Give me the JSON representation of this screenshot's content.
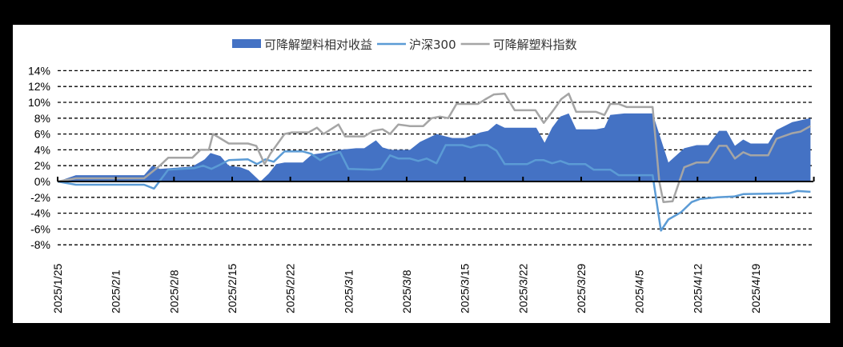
{
  "chart_data": {
    "type": "area+line",
    "title": "",
    "xlabel": "",
    "ylabel": "",
    "ylim": [
      -8,
      14
    ],
    "yticks": [
      "14%",
      "12%",
      "10%",
      "8%",
      "6%",
      "4%",
      "2%",
      "0%",
      "-2%",
      "-4%",
      "-6%",
      "-8%"
    ],
    "ytick_values": [
      14,
      12,
      10,
      8,
      6,
      4,
      2,
      0,
      -2,
      -4,
      -6,
      -8
    ],
    "xlim_dates": [
      "2025/1/25",
      "2025/4/26"
    ],
    "xtick_labels": [
      "2025/1/25",
      "2025/2/1",
      "2025/2/8",
      "2025/2/15",
      "2025/2/22",
      "2025/3/1",
      "2025/3/8",
      "2025/3/15",
      "2025/3/22",
      "2025/3/29",
      "2025/4/5",
      "2025/4/12",
      "2025/4/19"
    ],
    "grid": "horizontal dashed",
    "legend_position": "top",
    "legend": [
      {
        "label": "可降解塑料相对收益",
        "type": "area",
        "color": "#4472C4"
      },
      {
        "label": "沪深300",
        "type": "line",
        "color": "#5B9BD5"
      },
      {
        "label": "可降解塑料指数",
        "type": "line",
        "color": "#A5A5A5"
      }
    ],
    "series": [
      {
        "name": "可降解塑料相对收益",
        "type": "area",
        "color": "#4472C4",
        "points": [
          [
            0,
            0
          ],
          [
            2.2,
            0.8
          ],
          [
            10.4,
            0.8
          ],
          [
            11.4,
            2.0
          ],
          [
            12.3,
            1.6
          ],
          [
            16.2,
            1.9
          ],
          [
            17.7,
            2.8
          ],
          [
            18.4,
            3.6
          ],
          [
            19.6,
            3.2
          ],
          [
            20.6,
            2.0
          ],
          [
            22,
            1.8
          ],
          [
            23,
            1.4
          ],
          [
            24.4,
            0
          ],
          [
            25.4,
            1.0
          ],
          [
            26.3,
            2.2
          ],
          [
            27.3,
            2.4
          ],
          [
            29.5,
            2.4
          ],
          [
            30.6,
            3.4
          ],
          [
            32.6,
            3.7
          ],
          [
            34,
            4.0
          ],
          [
            35.9,
            4.2
          ],
          [
            36.9,
            4.2
          ],
          [
            38.3,
            5.2
          ],
          [
            39.1,
            4.3
          ],
          [
            40.1,
            4.0
          ],
          [
            42.4,
            4.0
          ],
          [
            43.6,
            5.0
          ],
          [
            45.6,
            6.0
          ],
          [
            47.5,
            5.5
          ],
          [
            49,
            5.5
          ],
          [
            50.9,
            6.2
          ],
          [
            51.8,
            6.4
          ],
          [
            52.8,
            7.3
          ],
          [
            53.8,
            6.8
          ],
          [
            57.6,
            6.8
          ],
          [
            58.6,
            4.9
          ],
          [
            59.5,
            6.8
          ],
          [
            60.5,
            8.2
          ],
          [
            61.5,
            8.6
          ],
          [
            62.4,
            6.6
          ],
          [
            64.8,
            6.6
          ],
          [
            65.8,
            6.8
          ],
          [
            66.5,
            8.4
          ],
          [
            68.2,
            8.6
          ],
          [
            71.6,
            8.6
          ],
          [
            73.5,
            2.4
          ],
          [
            75.4,
            4.2
          ],
          [
            76.9,
            4.6
          ],
          [
            78.3,
            4.6
          ],
          [
            79.6,
            6.4
          ],
          [
            80.5,
            6.4
          ],
          [
            81.5,
            4.5
          ],
          [
            82.5,
            5.3
          ],
          [
            83.4,
            4.8
          ],
          [
            85.5,
            4.8
          ],
          [
            86.5,
            6.5
          ],
          [
            88.4,
            7.5
          ],
          [
            90.6,
            8.0
          ]
        ]
      },
      {
        "name": "沪深300",
        "type": "line",
        "color": "#5B9BD5",
        "points": [
          [
            0,
            0
          ],
          [
            2.2,
            -0.4
          ],
          [
            10.4,
            -0.4
          ],
          [
            11.6,
            -0.9
          ],
          [
            13.3,
            1.5
          ],
          [
            16.5,
            1.7
          ],
          [
            17.5,
            2.0
          ],
          [
            18.5,
            1.6
          ],
          [
            19.5,
            2.1
          ],
          [
            20.6,
            2.7
          ],
          [
            22.9,
            2.8
          ],
          [
            24,
            2.2
          ],
          [
            25,
            2.8
          ],
          [
            26,
            2.5
          ],
          [
            27.3,
            3.8
          ],
          [
            29.5,
            3.8
          ],
          [
            30.5,
            3.5
          ],
          [
            31.6,
            2.7
          ],
          [
            32.6,
            3.3
          ],
          [
            34,
            3.7
          ],
          [
            35,
            1.6
          ],
          [
            37.9,
            1.5
          ],
          [
            38.9,
            1.6
          ],
          [
            40,
            3.3
          ],
          [
            41,
            2.9
          ],
          [
            42.4,
            2.9
          ],
          [
            43.4,
            2.6
          ],
          [
            44.4,
            2.9
          ],
          [
            45.6,
            2.3
          ],
          [
            46.7,
            4.6
          ],
          [
            48.7,
            4.6
          ],
          [
            49.7,
            4.3
          ],
          [
            50.7,
            4.6
          ],
          [
            51.7,
            4.6
          ],
          [
            52.8,
            3.9
          ],
          [
            53.8,
            2.2
          ],
          [
            56.5,
            2.2
          ],
          [
            57.5,
            2.7
          ],
          [
            58.5,
            2.7
          ],
          [
            59.5,
            2.3
          ],
          [
            60.5,
            2.6
          ],
          [
            61.5,
            2.2
          ],
          [
            63.5,
            2.2
          ],
          [
            64.5,
            1.5
          ],
          [
            66.5,
            1.5
          ],
          [
            67.5,
            0.8
          ],
          [
            71.6,
            0.8
          ],
          [
            72.6,
            -6.2
          ],
          [
            73.5,
            -4.8
          ],
          [
            75,
            -3.9
          ],
          [
            76.3,
            -2.6
          ],
          [
            77.3,
            -2.2
          ],
          [
            79.4,
            -2.0
          ],
          [
            81.4,
            -1.9
          ],
          [
            82.5,
            -1.6
          ],
          [
            88,
            -1.5
          ],
          [
            89,
            -1.2
          ],
          [
            90.6,
            -1.3
          ]
        ]
      },
      {
        "name": "可降解塑料指数",
        "type": "line",
        "color": "#A5A5A5",
        "points": [
          [
            0,
            0
          ],
          [
            2.2,
            0.4
          ],
          [
            10.4,
            0.4
          ],
          [
            12.3,
            2.0
          ],
          [
            13.3,
            3.0
          ],
          [
            16.2,
            3.0
          ],
          [
            17.2,
            4.0
          ],
          [
            18.2,
            4.0
          ],
          [
            18.7,
            6.0
          ],
          [
            20.6,
            4.8
          ],
          [
            22.9,
            4.8
          ],
          [
            23.9,
            4.5
          ],
          [
            24.9,
            2.2
          ],
          [
            25.6,
            3.5
          ],
          [
            27.3,
            6.0
          ],
          [
            28.2,
            6.2
          ],
          [
            30.2,
            6.2
          ],
          [
            31.2,
            6.8
          ],
          [
            32,
            6.0
          ],
          [
            33.8,
            7.2
          ],
          [
            34.6,
            5.7
          ],
          [
            36.9,
            5.7
          ],
          [
            38,
            6.4
          ],
          [
            39.1,
            6.6
          ],
          [
            40,
            6.0
          ],
          [
            41,
            7.2
          ],
          [
            42.4,
            7.0
          ],
          [
            44,
            7.0
          ],
          [
            45,
            8.0
          ],
          [
            46,
            8.2
          ],
          [
            47,
            8.0
          ],
          [
            48,
            9.8
          ],
          [
            50.6,
            9.8
          ],
          [
            51.5,
            10.4
          ],
          [
            52.5,
            11.0
          ],
          [
            53.8,
            11.1
          ],
          [
            55,
            9.0
          ],
          [
            57.5,
            9.0
          ],
          [
            58.5,
            7.4
          ],
          [
            59.8,
            9.2
          ],
          [
            60.6,
            10.4
          ],
          [
            61.5,
            11.1
          ],
          [
            62.4,
            8.8
          ],
          [
            64.8,
            8.8
          ],
          [
            65.8,
            8.4
          ],
          [
            66.5,
            9.8
          ],
          [
            67.5,
            9.8
          ],
          [
            68.5,
            9.4
          ],
          [
            71.6,
            9.4
          ],
          [
            72.4,
            0
          ],
          [
            72.9,
            -2.6
          ],
          [
            74,
            -2.5
          ],
          [
            75.4,
            1.8
          ],
          [
            76.9,
            2.4
          ],
          [
            78.3,
            2.4
          ],
          [
            79.6,
            4.5
          ],
          [
            80.5,
            4.5
          ],
          [
            81.5,
            2.9
          ],
          [
            82.5,
            3.7
          ],
          [
            83.4,
            3.3
          ],
          [
            85.5,
            3.3
          ],
          [
            86.5,
            5.4
          ],
          [
            88.4,
            6.1
          ],
          [
            89.4,
            6.3
          ],
          [
            90.6,
            7.0
          ]
        ]
      }
    ],
    "x_unit": "days since 2025/1/25"
  }
}
